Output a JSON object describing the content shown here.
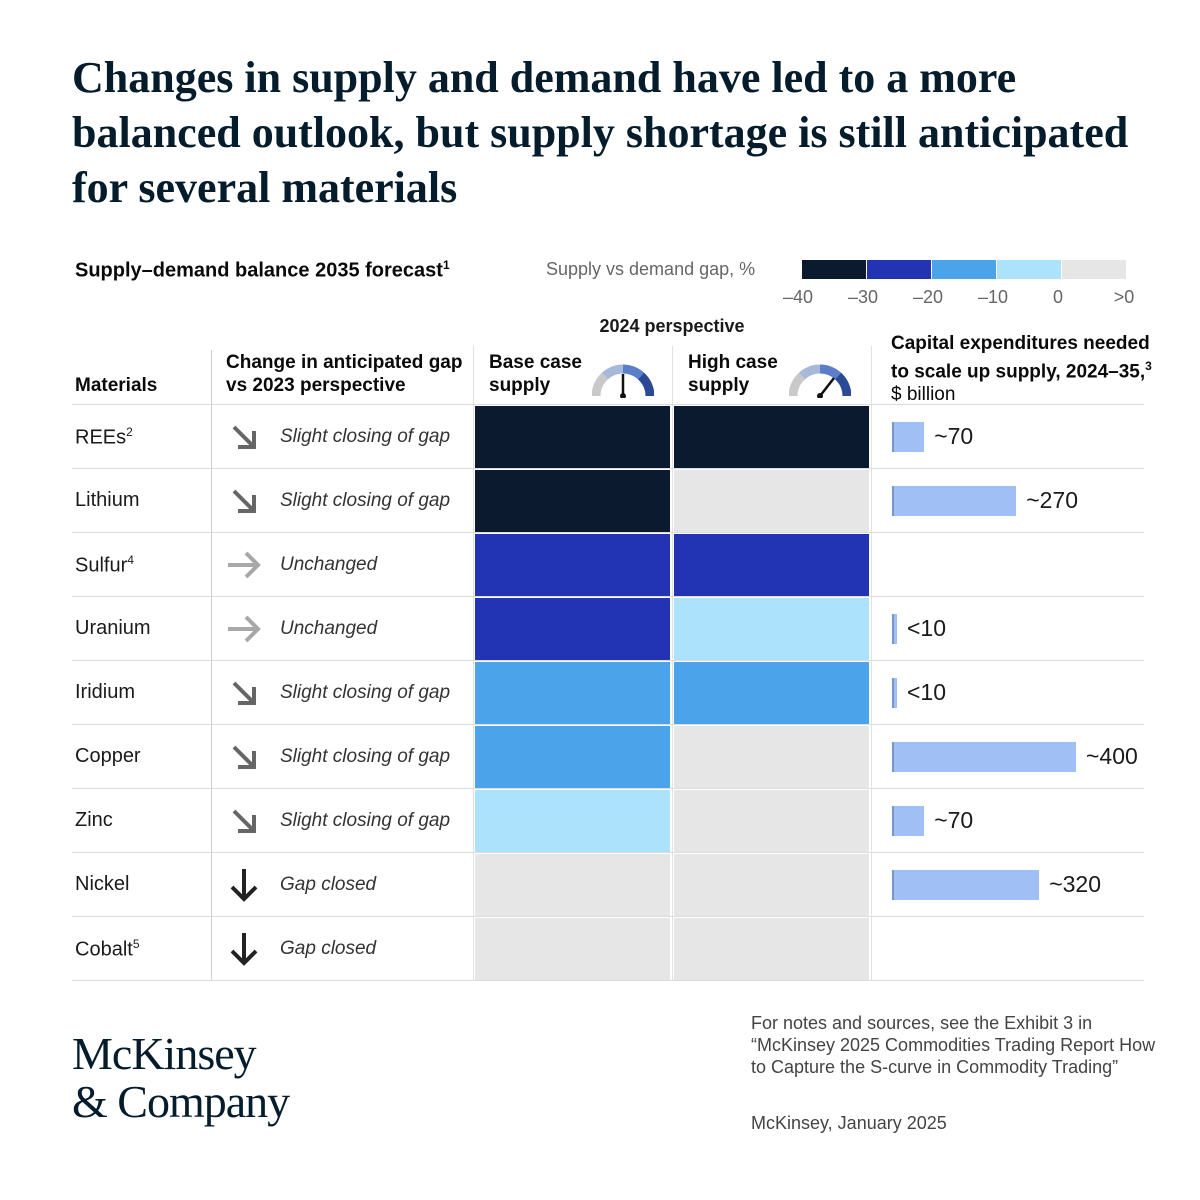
{
  "title": "Changes in supply and demand have led to a more balanced outlook, but supply shortage is still anticipated for several materials",
  "subtitle": "Supply–demand balance 2035 forecast",
  "subtitle_note": "1",
  "legend": {
    "title": "Supply vs demand gap, %",
    "ticks": [
      "–40",
      "–30",
      "–20",
      "–10",
      "0",
      ">0"
    ],
    "colors": [
      "#0b1a2e",
      "#2234b4",
      "#4ba4ea",
      "#ace2fb",
      "#e6e6e6"
    ]
  },
  "perspective_label": "2024 perspective",
  "headers": {
    "materials": "Materials",
    "change": "Change in anticipated gap vs 2023 perspective",
    "base": "Base case supply",
    "high": "High case supply",
    "capex_bold": "Capital expenditures needed to scale up supply, 2024–35,",
    "capex_note": "3",
    "capex_unit": "$ billion"
  },
  "chart_data": {
    "type": "table",
    "columns": [
      "Materials",
      "Change in anticipated gap vs 2023 perspective",
      "Base case supply",
      "High case supply",
      "Capital expenditures needed to scale up supply, 2024–35, $ billion"
    ],
    "color_scale_bins": [
      "–40 to –30",
      "–30 to –20",
      "–20 to –10",
      "–10 to 0",
      ">0"
    ],
    "rows": [
      {
        "material": "REEs",
        "note": "2",
        "change": "Slight closing of gap",
        "arrow": "diagonal",
        "base_bin": 0,
        "high_bin": 0,
        "capex_label": "~70",
        "capex": 70
      },
      {
        "material": "Lithium",
        "note": "",
        "change": "Slight closing of gap",
        "arrow": "diagonal",
        "base_bin": 0,
        "high_bin": 4,
        "capex_label": "~270",
        "capex": 270
      },
      {
        "material": "Sulfur",
        "note": "4",
        "change": "Unchanged",
        "arrow": "right",
        "base_bin": 1,
        "high_bin": 1,
        "capex_label": "",
        "capex": null
      },
      {
        "material": "Uranium",
        "note": "",
        "change": "Unchanged",
        "arrow": "right",
        "base_bin": 1,
        "high_bin": 3,
        "capex_label": "<10",
        "capex": 5
      },
      {
        "material": "Iridium",
        "note": "",
        "change": "Slight closing of gap",
        "arrow": "diagonal",
        "base_bin": 2,
        "high_bin": 2,
        "capex_label": "<10",
        "capex": 5
      },
      {
        "material": "Copper",
        "note": "",
        "change": "Slight closing of gap",
        "arrow": "diagonal",
        "base_bin": 2,
        "high_bin": 4,
        "capex_label": "~400",
        "capex": 400
      },
      {
        "material": "Zinc",
        "note": "",
        "change": "Slight closing of gap",
        "arrow": "diagonal",
        "base_bin": 3,
        "high_bin": 4,
        "capex_label": "~70",
        "capex": 70
      },
      {
        "material": "Nickel",
        "note": "",
        "change": "Gap closed",
        "arrow": "down",
        "base_bin": 4,
        "high_bin": 4,
        "capex_label": "~320",
        "capex": 320
      },
      {
        "material": "Cobalt",
        "note": "5",
        "change": "Gap closed",
        "arrow": "down",
        "base_bin": 4,
        "high_bin": 4,
        "capex_label": "",
        "capex": null
      }
    ],
    "capex_max": 400
  },
  "footer": {
    "logo_line1": "McKinsey",
    "logo_line2": "& Company",
    "note": "For notes and sources, see the Exhibit 3 in “McKinsey 2025 Commodities Trading Report How to Capture the S-curve in Commodity Trading”",
    "credit": "McKinsey, January 2025"
  }
}
